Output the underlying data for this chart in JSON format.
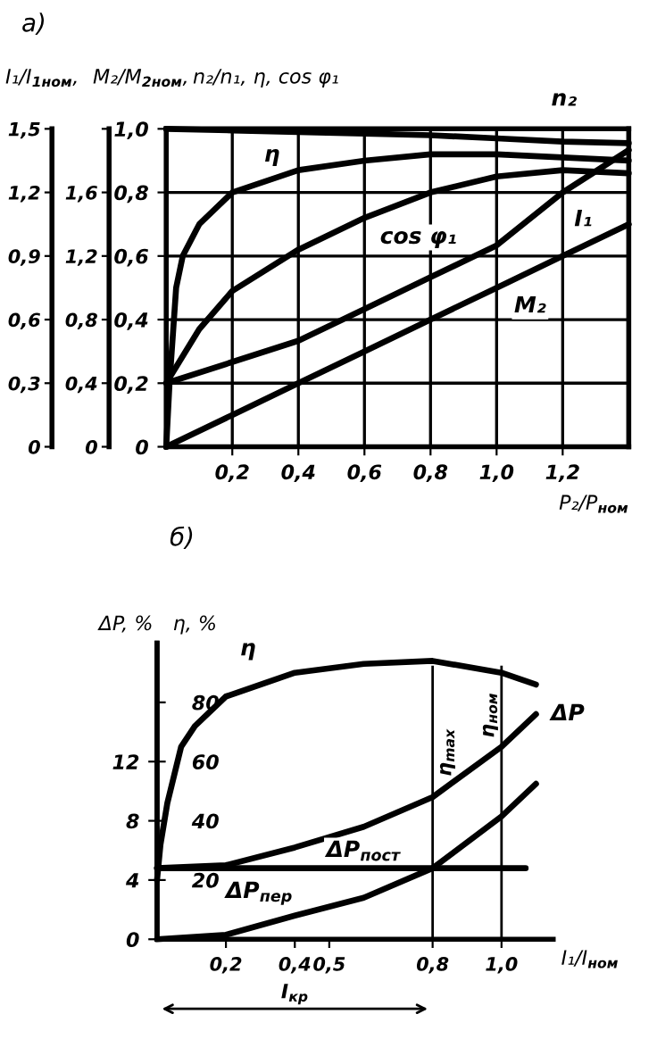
{
  "chart_data": [
    {
      "type": "line",
      "title": "а)",
      "xlabel": "P₂/P$_{ном}$",
      "ylabel": "n₂/n₁, η, cos φ₁",
      "y2label": "I₁/I$_{1ном}$,",
      "y3label": "M₂/M$_{2ном}$,",
      "xlim": [
        0,
        1.4
      ],
      "xticks": [
        {
          "value": 0.2,
          "label": "0,2"
        },
        {
          "value": 0.4,
          "label": "0,4"
        },
        {
          "value": 0.6,
          "label": "0,6"
        },
        {
          "value": 0.8,
          "label": "0,8"
        },
        {
          "value": 1.0,
          "label": "1,0"
        },
        {
          "value": 1.2,
          "label": "1,2"
        }
      ],
      "ylim": [
        0,
        1.0
      ],
      "yticks": [
        0,
        {
          "value": 0.2,
          "label": "0,2"
        },
        {
          "value": 0.4,
          "label": "0,4"
        },
        {
          "value": 0.6,
          "label": "0,6"
        },
        {
          "value": 0.8,
          "label": "0,8"
        },
        {
          "value": 1.0,
          "label": "1,0"
        }
      ],
      "y2lim": [
        0,
        1.5
      ],
      "y2ticks": [
        0,
        {
          "value": 0.3,
          "label": "0,3"
        },
        {
          "value": 0.6,
          "label": "0,6"
        },
        {
          "value": 0.9,
          "label": "0,9"
        },
        {
          "value": 1.2,
          "label": "1,2"
        },
        {
          "value": 1.5,
          "label": "1,5"
        }
      ],
      "y3lim": [
        0,
        2.0
      ],
      "y3ticks": [
        0,
        {
          "value": 0.4,
          "label": "0,4"
        },
        {
          "value": 0.8,
          "label": "0,8"
        },
        {
          "value": 1.2,
          "label": "1,2"
        },
        {
          "value": 1.6,
          "label": "1,6"
        },
        {
          "value": 2.0,
          "label": null
        }
      ],
      "grid": true,
      "line_style": "solid",
      "marker": "none",
      "series": [
        {
          "name": "n₂",
          "color": "#000000",
          "x": [
            0,
            0.2,
            0.4,
            0.6,
            0.8,
            1.0,
            1.2,
            1.4
          ],
          "values": [
            1.0,
            0.995,
            0.99,
            0.985,
            0.98,
            0.97,
            0.96,
            0.955
          ]
        },
        {
          "name": "η",
          "color": "#000000",
          "x": [
            0,
            0.01,
            0.03,
            0.05,
            0.1,
            0.2,
            0.4,
            0.6,
            0.8,
            1.0,
            1.2,
            1.4
          ],
          "values": [
            0,
            0.2,
            0.5,
            0.6,
            0.7,
            0.8,
            0.87,
            0.9,
            0.92,
            0.92,
            0.91,
            0.9
          ]
        },
        {
          "name": "cos φ₁",
          "color": "#000000",
          "x": [
            0,
            0.1,
            0.2,
            0.4,
            0.6,
            0.8,
            1.0,
            1.2,
            1.4
          ],
          "values": [
            0.2,
            0.37,
            0.49,
            0.62,
            0.72,
            0.8,
            0.85,
            0.87,
            0.86
          ]
        },
        {
          "name": "I₁",
          "color": "#000000",
          "axis": "y2",
          "x": [
            0,
            0.2,
            0.4,
            0.6,
            0.8,
            1.0,
            1.2,
            1.4
          ],
          "values": [
            0.3,
            0.4,
            0.5,
            0.65,
            0.8,
            0.95,
            1.2,
            1.4
          ]
        },
        {
          "name": "M₂",
          "color": "#000000",
          "axis": "y3",
          "x": [
            0,
            0.2,
            0.4,
            0.6,
            0.8,
            1.0,
            1.2,
            1.4
          ],
          "values": [
            0,
            0.2,
            0.4,
            0.6,
            0.8,
            1.0,
            1.2,
            1.4
          ]
        }
      ]
    },
    {
      "type": "line",
      "title": "б)",
      "xlabel": "I₁/I$_{ном}$",
      "ylabel": "ΔP, %",
      "y2label": "η, %",
      "xlim": [
        0,
        1.15
      ],
      "xticks": [
        {
          "value": 0.2,
          "label": "0,2"
        },
        {
          "value": 0.4,
          "label": "0,4"
        },
        {
          "value": 0.5,
          "label": "0,5"
        },
        {
          "value": 0.8,
          "label": "0,8"
        },
        {
          "value": 1.0,
          "label": "1,0"
        }
      ],
      "ylim": [
        0,
        20
      ],
      "yticks": [
        0,
        4,
        8,
        12
      ],
      "y2lim": [
        0,
        100
      ],
      "y2ticks": [
        20,
        40,
        60,
        80
      ],
      "grid": false,
      "line_style": "solid",
      "marker": "none",
      "series": [
        {
          "name": "η",
          "color": "#000000",
          "axis": "y2",
          "x": [
            0,
            0.01,
            0.03,
            0.07,
            0.11,
            0.2,
            0.4,
            0.6,
            0.8,
            1.0,
            1.1
          ],
          "values": [
            20,
            32,
            46,
            65,
            72,
            82,
            90,
            93,
            94,
            90,
            86
          ]
        },
        {
          "name": "ΔP",
          "color": "#000000",
          "x": [
            0,
            0.2,
            0.4,
            0.6,
            0.8,
            1.0,
            1.1
          ],
          "values": [
            4.8,
            5.0,
            6.2,
            7.6,
            9.6,
            13.0,
            15.2
          ]
        },
        {
          "name": "ΔP$_{пост}$",
          "color": "#000000",
          "x": [
            0,
            1.07
          ],
          "values": [
            4.8,
            4.8
          ]
        },
        {
          "name": "ΔP$_{пер}$",
          "color": "#000000",
          "x": [
            0,
            0.2,
            0.4,
            0.6,
            0.8,
            1.0,
            1.1
          ],
          "values": [
            0,
            0.3,
            1.6,
            2.8,
            4.8,
            8.3,
            10.5
          ]
        }
      ],
      "ref_lines": [
        {
          "axis": "x",
          "value": 0.8,
          "label": "η$_{max}$"
        },
        {
          "axis": "x",
          "value": 1.0,
          "label": "η$_{ном}$"
        }
      ],
      "annotations": [
        "I$_{кр}$"
      ]
    }
  ]
}
